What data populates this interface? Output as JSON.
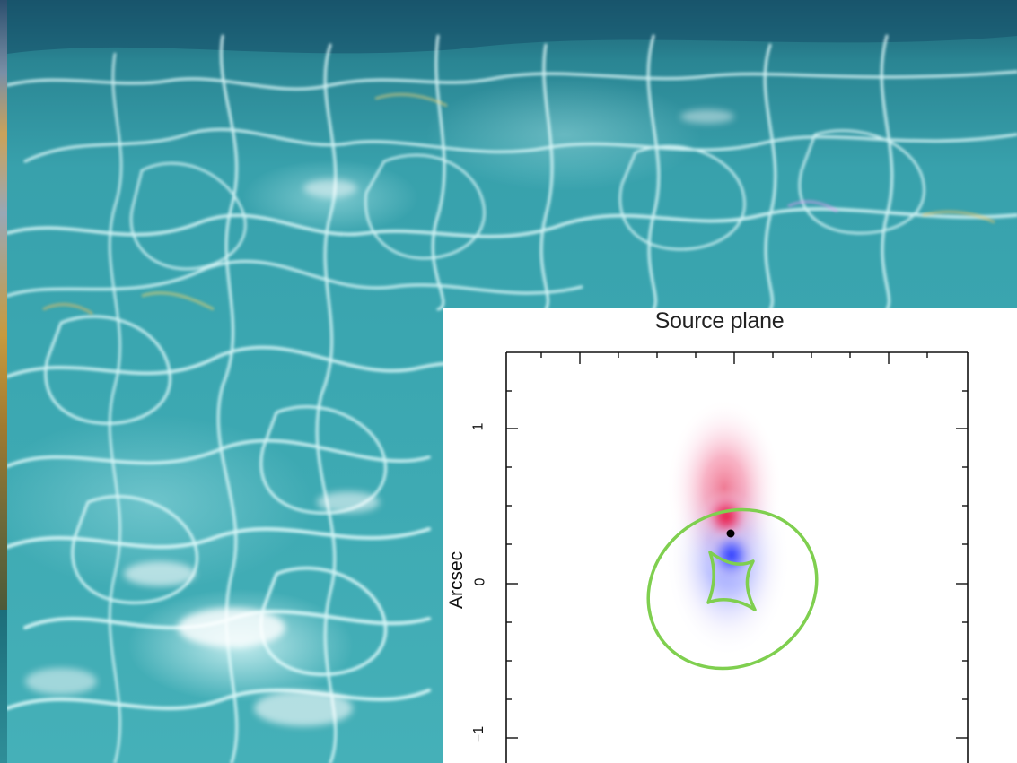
{
  "figure": {
    "title": "Source plane",
    "ylabel": "Arcsec",
    "yticks": [
      "1",
      "0",
      "−1"
    ]
  },
  "colors": {
    "caustic": "#7fcf4f",
    "red_emission": "#e8164a",
    "blue_emission": "#2a3cff",
    "water": "#3aa6b0"
  }
}
